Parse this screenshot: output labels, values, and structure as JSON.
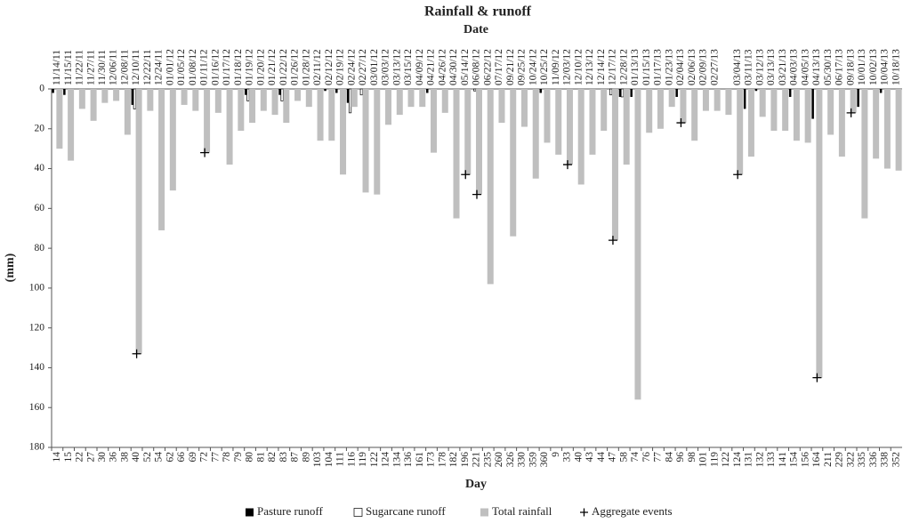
{
  "chart_data": {
    "type": "bar",
    "title": "Rainfall & runoff",
    "top_axis_label": "Date",
    "x_label": "Day",
    "y_label": "(mm)",
    "categories": [
      14,
      15,
      22,
      27,
      30,
      36,
      38,
      40,
      52,
      54,
      62,
      66,
      69,
      72,
      77,
      78,
      79,
      80,
      81,
      82,
      83,
      87,
      89,
      103,
      104,
      111,
      116,
      119,
      122,
      124,
      134,
      136,
      161,
      173,
      178,
      182,
      196,
      221,
      235,
      260,
      326,
      330,
      359,
      360,
      9,
      33,
      40,
      43,
      44,
      47,
      58,
      74,
      76,
      77,
      84,
      96,
      98,
      101,
      119,
      122,
      124,
      131,
      132,
      133,
      141,
      154,
      156,
      164,
      211,
      229,
      322,
      335,
      336,
      338,
      352
    ],
    "dates": [
      "11/14/11",
      "11/15/11",
      "11/22/11",
      "11/27/11",
      "11/30/11",
      "12/06/11",
      "12/08/11",
      "12/10/11",
      "12/22/11",
      "12/24/11",
      "01/01/12",
      "01/05/12",
      "01/08/12",
      "01/11/12",
      "01/16/12",
      "01/17/12",
      "01/18/12",
      "01/19/12",
      "01/20/12",
      "01/21/12",
      "01/22/12",
      "01/26/12",
      "01/28/12",
      "02/11/12",
      "02/12/12",
      "02/19/12",
      "02/24/12",
      "02/27/12",
      "03/01/12",
      "03/03/12",
      "03/13/12",
      "03/15/12",
      "04/09/12",
      "04/21/12",
      "04/26/12",
      "04/30/12",
      "05/14/12",
      "06/08/12",
      "06/22/12",
      "07/17/12",
      "09/21/12",
      "09/25/12",
      "10/24/12",
      "10/25/12",
      "11/09/12",
      "12/03/12",
      "12/10/12",
      "12/13/12",
      "12/14/12",
      "12/17/12",
      "12/28/12",
      "01/13/13",
      "01/15/13",
      "01/17/13",
      "01/23/13",
      "02/04/13",
      "02/06/13",
      "02/09/13",
      "02/27/13",
      null,
      "03/04/13",
      "03/11/13",
      "03/12/13",
      "03/13/13",
      "03/21/13",
      "04/03/13",
      "04/05/13",
      "04/13/13",
      "05/30/13",
      "06/17/13",
      "09/18/13",
      "10/01/13",
      "10/02/13",
      "10/04/13",
      "10/18/13"
    ],
    "ylim": [
      0,
      180
    ],
    "y_inverted": true,
    "yticks": [
      0,
      20,
      40,
      60,
      80,
      100,
      120,
      140,
      160,
      180
    ],
    "grid": false,
    "legend": "bottom",
    "series": [
      {
        "name": "Pasture runoff",
        "color": "#000000",
        "values": [
          2,
          3,
          0,
          0,
          0,
          0,
          0,
          8,
          0,
          0,
          0,
          0,
          0,
          0,
          0,
          0,
          0,
          3,
          0,
          0,
          3,
          0,
          0,
          0,
          1,
          2,
          7,
          0,
          0,
          0,
          0,
          0,
          0,
          2,
          0,
          0,
          0,
          0,
          0,
          0,
          0,
          0,
          0,
          2,
          0,
          0,
          0,
          0,
          0,
          0,
          4,
          4,
          0,
          0,
          0,
          4,
          0,
          0,
          0,
          0,
          0,
          10,
          1,
          0,
          0,
          4,
          0,
          15,
          0,
          0,
          0,
          9,
          0,
          2,
          0
        ]
      },
      {
        "name": "Sugarcane runoff",
        "color": "#ffffff",
        "values": [
          0,
          0,
          0,
          0,
          0,
          0,
          0,
          10,
          0,
          0,
          0,
          0,
          0,
          0,
          0,
          0,
          0,
          6,
          0,
          0,
          6,
          0,
          0,
          0,
          0,
          0,
          12,
          3,
          0,
          0,
          0,
          0,
          0,
          0,
          0,
          0,
          0,
          1,
          0,
          0,
          0,
          0,
          0,
          0,
          0,
          0,
          0,
          0,
          0,
          3,
          4,
          0,
          0,
          0,
          0,
          0,
          0,
          0,
          0,
          0,
          0,
          0,
          0,
          0,
          0,
          0,
          0,
          0,
          0,
          0,
          0,
          0,
          0,
          0,
          0
        ]
      },
      {
        "name": "Total rainfall",
        "color": "#bfbfbf",
        "values": [
          30,
          36,
          10,
          16,
          7,
          6,
          23,
          133,
          11,
          71,
          51,
          8,
          11,
          32,
          12,
          38,
          21,
          17,
          11,
          13,
          17,
          6,
          9,
          26,
          26,
          43,
          9,
          52,
          53,
          18,
          13,
          9,
          9,
          32,
          12,
          65,
          43,
          53,
          98,
          17,
          74,
          19,
          45,
          27,
          33,
          38,
          48,
          33,
          21,
          76,
          38,
          156,
          22,
          20,
          9,
          17,
          26,
          11,
          11,
          13,
          43,
          34,
          14,
          21,
          21,
          26,
          27,
          145,
          23,
          34,
          12,
          65,
          35,
          40,
          41
        ]
      },
      {
        "name": "Aggregate events",
        "type": "scatter",
        "color": "#000000",
        "values": [
          null,
          null,
          null,
          null,
          null,
          null,
          null,
          133,
          null,
          null,
          null,
          null,
          null,
          32,
          null,
          null,
          null,
          null,
          null,
          null,
          null,
          null,
          null,
          null,
          null,
          null,
          null,
          null,
          null,
          null,
          null,
          null,
          null,
          null,
          null,
          null,
          43,
          53,
          null,
          null,
          null,
          null,
          null,
          null,
          null,
          38,
          null,
          null,
          null,
          76,
          null,
          null,
          null,
          null,
          null,
          17,
          null,
          null,
          null,
          null,
          43,
          null,
          null,
          null,
          null,
          null,
          null,
          145,
          null,
          null,
          12,
          null,
          null,
          null,
          null
        ]
      }
    ]
  }
}
